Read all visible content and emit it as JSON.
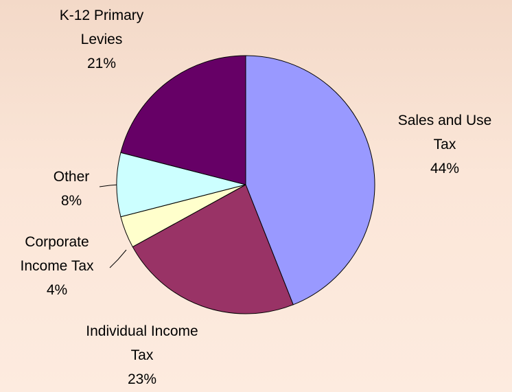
{
  "chart_data": {
    "type": "pie",
    "categories": [
      "Sales and Use Tax",
      "Individual Income Tax",
      "Corporate Income Tax",
      "Other",
      "K-12 Primary Levies"
    ],
    "values": [
      44,
      23,
      4,
      8,
      21
    ],
    "value_labels": [
      "44%",
      "23%",
      "4%",
      "8%",
      "21%"
    ],
    "colors": [
      "#9999ff",
      "#993366",
      "#ffffcc",
      "#ccffff",
      "#660066"
    ]
  }
}
